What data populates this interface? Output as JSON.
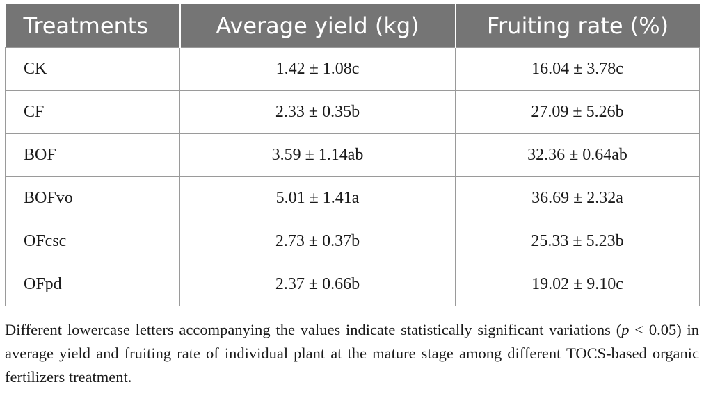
{
  "table": {
    "headers": [
      "Treatments",
      "Average yield (kg)",
      "Fruiting rate (%)"
    ],
    "rows": [
      {
        "treatment": "CK",
        "yield": "1.42 ± 1.08c",
        "fruiting": "16.04 ± 3.78c"
      },
      {
        "treatment": "CF",
        "yield": "2.33 ± 0.35b",
        "fruiting": "27.09 ± 5.26b"
      },
      {
        "treatment": "BOF",
        "yield": "3.59 ± 1.14ab",
        "fruiting": "32.36 ± 0.64ab"
      },
      {
        "treatment": "BOFvo",
        "yield": "5.01 ± 1.41a",
        "fruiting": "36.69 ± 2.32a"
      },
      {
        "treatment": "OFcsc",
        "yield": "2.73 ± 0.37b",
        "fruiting": "25.33 ± 5.23b"
      },
      {
        "treatment": "OFpd",
        "yield": "2.37 ± 0.66b",
        "fruiting": "19.02 ± 9.10c"
      }
    ]
  },
  "footnote": {
    "part1": "Different lowercase letters accompanying the values indicate statistically significant variations (",
    "p": "p",
    "part2": " < 0.05) in average yield and fruiting rate of individual plant at the mature stage among different TOCS-based organic fertilizers treatment."
  },
  "colors": {
    "header_bg": "#757575",
    "header_text": "#ffffff",
    "grid": "#9a9a9a"
  }
}
